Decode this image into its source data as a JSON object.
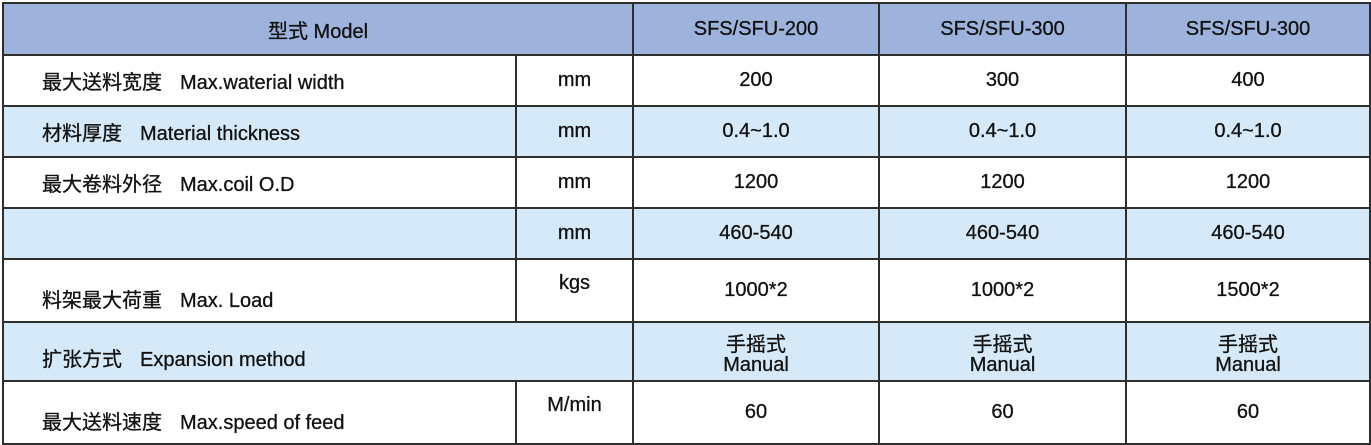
{
  "header": {
    "model_label": "型式 Model",
    "models": [
      "SFS/SFU-200",
      "SFS/SFU-300",
      "SFS/SFU-300"
    ]
  },
  "rows": [
    {
      "zh": "最大送料宽度",
      "en": "Max.waterial width",
      "unit": "mm",
      "values": [
        "200",
        "300",
        "400"
      ]
    },
    {
      "zh": "材料厚度",
      "en": "Material thickness",
      "unit": "mm",
      "values": [
        "0.4~1.0",
        "0.4~1.0",
        "0.4~1.0"
      ]
    },
    {
      "zh": "最大卷料外径",
      "en": "Max.coil O.D",
      "unit": "mm",
      "values": [
        "1200",
        "1200",
        "1200"
      ]
    },
    {
      "zh": "",
      "en": "",
      "unit": "mm",
      "values": [
        "460-540",
        "460-540",
        "460-540"
      ]
    },
    {
      "zh": "料架最大荷重",
      "en": "Max. Load",
      "unit": "kgs",
      "values": [
        "1000*2",
        "1000*2",
        "1500*2"
      ]
    },
    {
      "zh": "扩张方式",
      "en": "Expansion method",
      "values_zh": [
        "手摇式",
        "手摇式",
        "手摇式"
      ],
      "values_en": [
        "Manual",
        "Manual",
        "Manual"
      ]
    },
    {
      "zh": "最大送料速度",
      "en": "Max.speed of feed",
      "unit": "M/min",
      "values": [
        "60",
        "60",
        "60"
      ]
    }
  ],
  "colors": {
    "header": "#9eb3dc",
    "alt_row": "#d5e9f8",
    "border": "#2e2e2e"
  }
}
